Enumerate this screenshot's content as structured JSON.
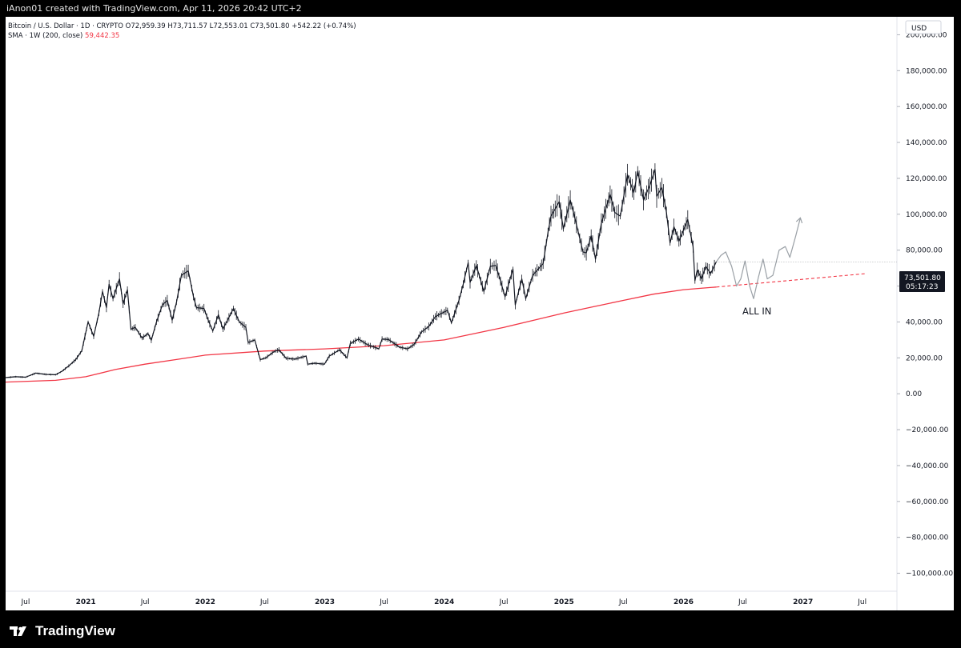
{
  "header": {
    "credit": "iAnon01 created with TradingView.com, Apr 11, 2026 20:42 UTC+2"
  },
  "legend": {
    "symbol_line": "Bitcoin / U.S. Dollar · 1D · CRYPTO  O72,959.39  H73,711.57  L72,553.01  C73,501.80  +542.22 (+0.74%)",
    "sma_label": "SMA · 1W (200, close)",
    "sma_value": "59,442.35"
  },
  "price_scale": {
    "currency": "USD",
    "last_price": "73,501.80",
    "countdown": "05:17:23"
  },
  "annotation": {
    "text": "ALL IN"
  },
  "footer": {
    "brand": "TradingView"
  },
  "colors": {
    "price": "#131722",
    "sma": "#f23645",
    "projection": "#9aa0a6",
    "axis_text": "#131722"
  },
  "chart_data": {
    "type": "line",
    "title": "",
    "xlabel": "",
    "ylabel": "",
    "ylim": [
      -110000,
      210000
    ],
    "xlim": [
      "2020-05-01",
      "2027-10-15"
    ],
    "y_ticks": [
      -100000,
      -80000,
      -60000,
      -40000,
      -20000,
      0,
      20000,
      40000,
      60000,
      80000,
      100000,
      120000,
      140000,
      160000,
      180000,
      200000
    ],
    "y_tick_labels": [
      "−100,000.00",
      "−80,000.00",
      "−60,000.00",
      "−40,000.00",
      "−20,000.00",
      "0.00",
      "20,000.00",
      "40,000.00",
      "60,000.00",
      "80,000.00",
      "100,000.00",
      "120,000.00",
      "140,000.00",
      "160,000.00",
      "180,000.00",
      "200,000.00"
    ],
    "x_ticks": [
      {
        "label": "Jul",
        "date": "2020-07-01"
      },
      {
        "label": "2021",
        "date": "2021-01-01"
      },
      {
        "label": "Jul",
        "date": "2021-07-01"
      },
      {
        "label": "2022",
        "date": "2022-01-01"
      },
      {
        "label": "Jul",
        "date": "2022-07-01"
      },
      {
        "label": "2023",
        "date": "2023-01-01"
      },
      {
        "label": "Jul",
        "date": "2023-07-01"
      },
      {
        "label": "2024",
        "date": "2024-01-01"
      },
      {
        "label": "Jul",
        "date": "2024-07-01"
      },
      {
        "label": "2025",
        "date": "2025-01-01"
      },
      {
        "label": "Jul",
        "date": "2025-07-01"
      },
      {
        "label": "2026",
        "date": "2026-01-01"
      },
      {
        "label": "Jul",
        "date": "2026-07-01"
      },
      {
        "label": "2027",
        "date": "2027-01-01"
      },
      {
        "label": "Jul",
        "date": "2027-07-01"
      }
    ],
    "grid": false,
    "series": [
      {
        "name": "Bitcoin / U.S. Dollar",
        "points": [
          [
            "2020-05-01",
            9000
          ],
          [
            "2020-06-01",
            9500
          ],
          [
            "2020-07-01",
            9200
          ],
          [
            "2020-08-01",
            11500
          ],
          [
            "2020-09-01",
            10800
          ],
          [
            "2020-10-01",
            10600
          ],
          [
            "2020-10-20",
            12500
          ],
          [
            "2020-11-10",
            15500
          ],
          [
            "2020-12-01",
            19000
          ],
          [
            "2020-12-20",
            24000
          ],
          [
            "2021-01-08",
            40000
          ],
          [
            "2021-01-25",
            32000
          ],
          [
            "2021-02-10",
            45000
          ],
          [
            "2021-02-21",
            57000
          ],
          [
            "2021-03-05",
            48000
          ],
          [
            "2021-03-13",
            61000
          ],
          [
            "2021-03-25",
            53000
          ],
          [
            "2021-04-14",
            64000
          ],
          [
            "2021-04-25",
            50000
          ],
          [
            "2021-05-08",
            58000
          ],
          [
            "2021-05-19",
            36000
          ],
          [
            "2021-06-01",
            37000
          ],
          [
            "2021-06-22",
            31000
          ],
          [
            "2021-07-10",
            33500
          ],
          [
            "2021-07-20",
            29800
          ],
          [
            "2021-08-05",
            40000
          ],
          [
            "2021-08-23",
            49500
          ],
          [
            "2021-09-07",
            52000
          ],
          [
            "2021-09-22",
            41000
          ],
          [
            "2021-10-05",
            51000
          ],
          [
            "2021-10-20",
            66000
          ],
          [
            "2021-11-10",
            68500
          ],
          [
            "2021-11-26",
            54000
          ],
          [
            "2021-12-05",
            48000
          ],
          [
            "2021-12-28",
            47500
          ],
          [
            "2022-01-10",
            41000
          ],
          [
            "2022-01-24",
            35000
          ],
          [
            "2022-02-10",
            44000
          ],
          [
            "2022-02-24",
            36000
          ],
          [
            "2022-03-28",
            47500
          ],
          [
            "2022-04-15",
            40000
          ],
          [
            "2022-05-05",
            37000
          ],
          [
            "2022-05-12",
            28500
          ],
          [
            "2022-06-01",
            30000
          ],
          [
            "2022-06-18",
            19000
          ],
          [
            "2022-07-05",
            20000
          ],
          [
            "2022-07-30",
            23500
          ],
          [
            "2022-08-14",
            24500
          ],
          [
            "2022-09-05",
            19800
          ],
          [
            "2022-10-01",
            19300
          ],
          [
            "2022-11-05",
            21000
          ],
          [
            "2022-11-10",
            16500
          ],
          [
            "2022-12-01",
            17000
          ],
          [
            "2022-12-31",
            16500
          ],
          [
            "2023-01-15",
            21000
          ],
          [
            "2023-02-15",
            24500
          ],
          [
            "2023-03-10",
            20000
          ],
          [
            "2023-03-20",
            28000
          ],
          [
            "2023-04-14",
            30500
          ],
          [
            "2023-05-10",
            27500
          ],
          [
            "2023-06-15",
            25000
          ],
          [
            "2023-06-25",
            30500
          ],
          [
            "2023-07-15",
            30200
          ],
          [
            "2023-08-17",
            26000
          ],
          [
            "2023-09-11",
            25000
          ],
          [
            "2023-10-01",
            27500
          ],
          [
            "2023-10-24",
            34500
          ],
          [
            "2023-11-15",
            37500
          ],
          [
            "2023-12-05",
            43000
          ],
          [
            "2024-01-11",
            46500
          ],
          [
            "2024-01-23",
            39500
          ],
          [
            "2024-02-15",
            52000
          ],
          [
            "2024-02-28",
            61000
          ],
          [
            "2024-03-14",
            73000
          ],
          [
            "2024-03-20",
            62000
          ],
          [
            "2024-04-08",
            71500
          ],
          [
            "2024-05-01",
            57000
          ],
          [
            "2024-05-21",
            71000
          ],
          [
            "2024-06-07",
            71500
          ],
          [
            "2024-07-05",
            54000
          ],
          [
            "2024-07-29",
            69500
          ],
          [
            "2024-08-05",
            49500
          ],
          [
            "2024-08-25",
            64000
          ],
          [
            "2024-09-06",
            53000
          ],
          [
            "2024-09-27",
            66000
          ],
          [
            "2024-10-29",
            72500
          ],
          [
            "2024-11-13",
            90000
          ],
          [
            "2024-11-22",
            99000
          ],
          [
            "2024-12-05",
            103000
          ],
          [
            "2024-12-17",
            107000
          ],
          [
            "2024-12-30",
            92000
          ],
          [
            "2025-01-20",
            108000
          ],
          [
            "2025-02-03",
            98000
          ],
          [
            "2025-02-28",
            79000
          ],
          [
            "2025-03-10",
            78500
          ],
          [
            "2025-03-25",
            88000
          ],
          [
            "2025-04-07",
            75000
          ],
          [
            "2025-04-25",
            95000
          ],
          [
            "2025-05-22",
            111000
          ],
          [
            "2025-06-05",
            101000
          ],
          [
            "2025-06-22",
            99000
          ],
          [
            "2025-07-14",
            122000
          ],
          [
            "2025-08-02",
            112000
          ],
          [
            "2025-08-14",
            124000
          ],
          [
            "2025-09-01",
            108000
          ],
          [
            "2025-09-20",
            116000
          ],
          [
            "2025-10-06",
            125000
          ],
          [
            "2025-10-11",
            110000
          ],
          [
            "2025-10-27",
            115000
          ],
          [
            "2025-11-10",
            101000
          ],
          [
            "2025-11-21",
            84000
          ],
          [
            "2025-12-03",
            93000
          ],
          [
            "2025-12-18",
            85000
          ],
          [
            "2026-01-05",
            93000
          ],
          [
            "2026-01-14",
            97000
          ],
          [
            "2026-01-30",
            82000
          ],
          [
            "2026-02-05",
            63000
          ],
          [
            "2026-02-12",
            69000
          ],
          [
            "2026-02-25",
            64000
          ],
          [
            "2026-03-10",
            71000
          ],
          [
            "2026-03-25",
            67000
          ],
          [
            "2026-04-11",
            73502
          ]
        ]
      },
      {
        "name": "SMA · 1W (200, close)",
        "points": [
          [
            "2020-05-01",
            6500
          ],
          [
            "2020-10-01",
            7500
          ],
          [
            "2021-01-01",
            9500
          ],
          [
            "2021-04-01",
            13500
          ],
          [
            "2021-07-01",
            16500
          ],
          [
            "2021-10-01",
            19000
          ],
          [
            "2022-01-01",
            21500
          ],
          [
            "2022-07-01",
            23800
          ],
          [
            "2023-01-01",
            25000
          ],
          [
            "2023-07-01",
            26800
          ],
          [
            "2024-01-01",
            30000
          ],
          [
            "2024-07-01",
            37000
          ],
          [
            "2024-10-01",
            41000
          ],
          [
            "2025-01-01",
            45000
          ],
          [
            "2025-04-01",
            48500
          ],
          [
            "2025-07-01",
            52000
          ],
          [
            "2025-10-01",
            55500
          ],
          [
            "2026-01-01",
            58000
          ],
          [
            "2026-04-11",
            59442
          ]
        ]
      },
      {
        "name": "SMA projection",
        "points": [
          [
            "2026-04-11",
            59442
          ],
          [
            "2027-07-15",
            67000
          ]
        ]
      },
      {
        "name": "Projected path",
        "points": [
          [
            "2026-04-11",
            73502
          ],
          [
            "2026-04-25",
            77000
          ],
          [
            "2026-05-10",
            79000
          ],
          [
            "2026-05-28",
            71000
          ],
          [
            "2026-06-12",
            60000
          ],
          [
            "2026-06-25",
            64000
          ],
          [
            "2026-07-08",
            74000
          ],
          [
            "2026-07-22",
            60000
          ],
          [
            "2026-08-03",
            53000
          ],
          [
            "2026-08-18",
            65000
          ],
          [
            "2026-09-01",
            75000
          ],
          [
            "2026-09-14",
            64000
          ],
          [
            "2026-10-01",
            66000
          ],
          [
            "2026-10-20",
            80000
          ],
          [
            "2026-11-08",
            82000
          ],
          [
            "2026-11-22",
            76000
          ],
          [
            "2026-12-10",
            88000
          ],
          [
            "2026-12-24",
            98000
          ]
        ]
      }
    ]
  }
}
